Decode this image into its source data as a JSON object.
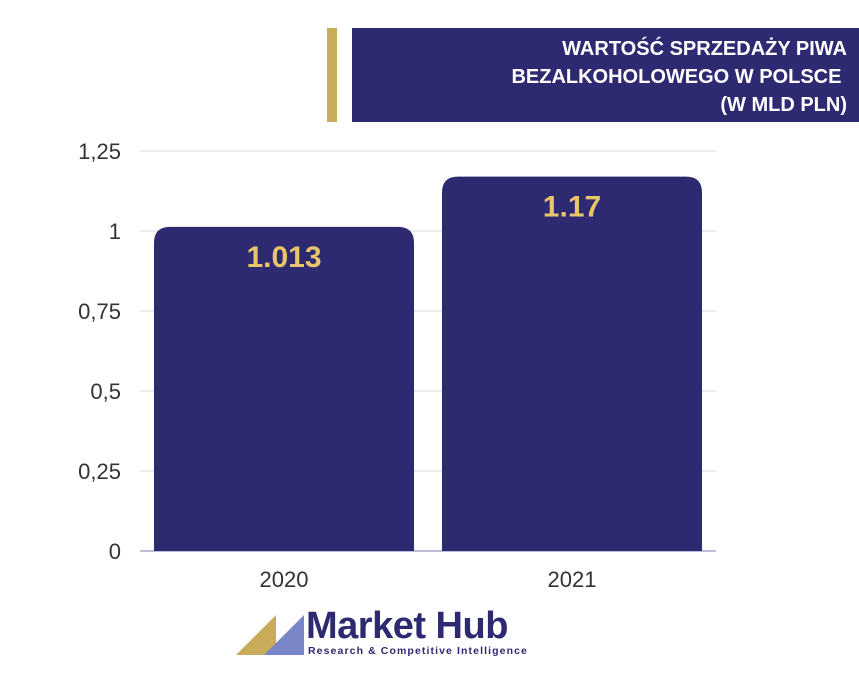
{
  "colors": {
    "bar": "#2e2a72",
    "label": "#e8c56a",
    "accent": "#c9ab5a",
    "grid": "#d9d9d9"
  },
  "title_lines": [
    "WARTOŚĆ SPRZEDAŻY PIWA",
    "BEZALKOHOLOWEGO W POLSCE ",
    "(W MLD PLN)"
  ],
  "chart_data": {
    "type": "bar",
    "categories": [
      "2020",
      "2021"
    ],
    "values": [
      1.013,
      1.17
    ],
    "value_labels": [
      "1.013",
      "1.17"
    ],
    "title": "WARTOŚĆ SPRZEDAŻY PIWA BEZALKOHOLOWEGO W POLSCE (W MLD PLN)",
    "xlabel": "",
    "ylabel": "",
    "ylim": [
      0,
      1.25
    ],
    "yticks": [
      0,
      0.25,
      0.5,
      0.75,
      1,
      1.25
    ],
    "ytick_labels": [
      "0",
      "0,25",
      "0,5",
      "0,75",
      "1",
      "1,25"
    ],
    "grid": true,
    "legend": "none"
  },
  "logo": {
    "name": "Market Hub",
    "tagline": "Research & Competitive Intelligence"
  }
}
